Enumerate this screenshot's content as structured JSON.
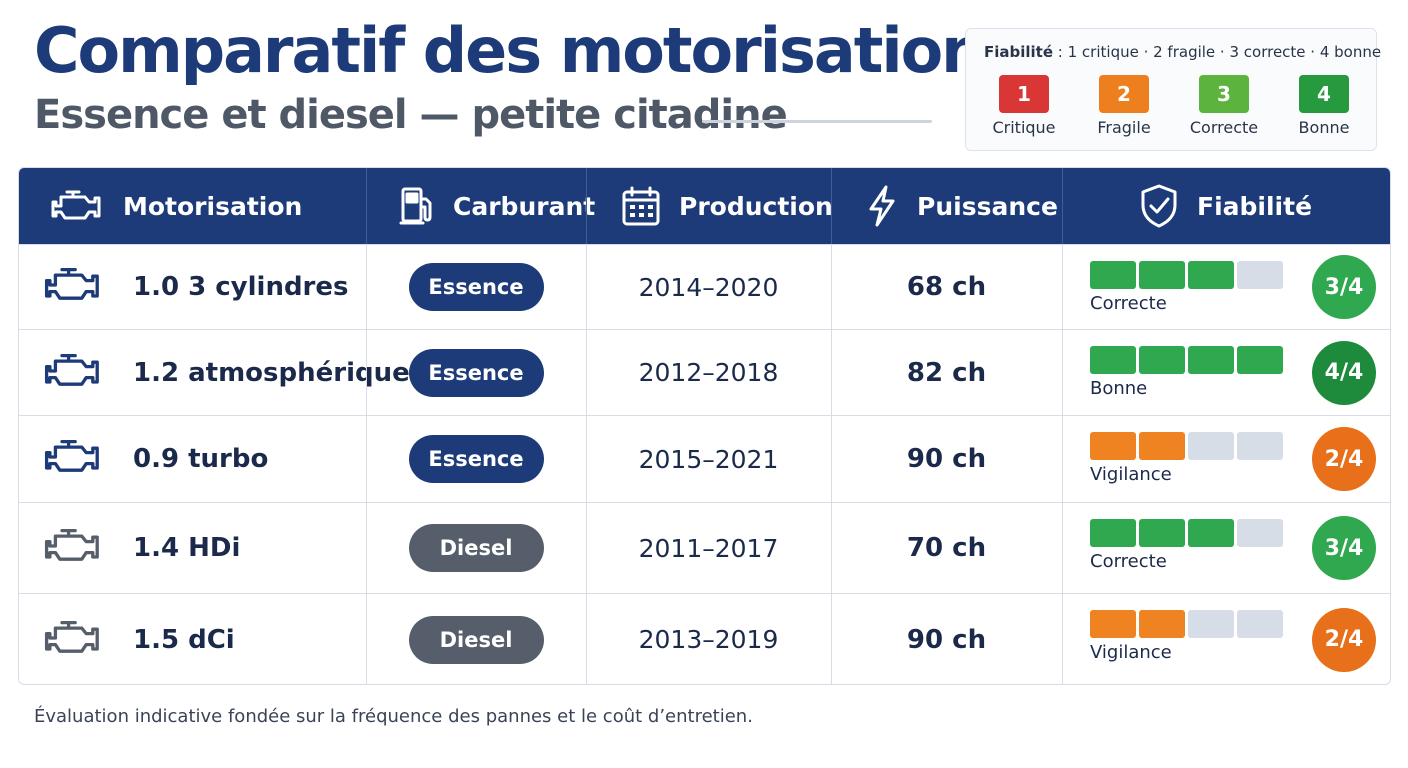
{
  "title": "Comparatif des motorisations",
  "subtitle": "Essence et diesel — petite citadine",
  "legend": {
    "title_bold": "Fiabilité",
    "title_rest": " : 1 critique · 2 fragile · 3 correcte · 4 bonne",
    "items": [
      {
        "value": "1",
        "label": "Critique",
        "color": "#d93636"
      },
      {
        "value": "2",
        "label": "Fragile",
        "color": "#ee7f1e"
      },
      {
        "value": "3",
        "label": "Correcte",
        "color": "#5cb33e"
      },
      {
        "value": "4",
        "label": "Bonne",
        "color": "#279a3f"
      }
    ]
  },
  "table": {
    "headers": {
      "engine": "Motorisation",
      "fuel": "Carburant",
      "production": "Production",
      "power": "Puissance",
      "reliability": "Fiabilité"
    },
    "header_icons": [
      "engine-icon",
      "fuel-pump-icon",
      "calendar-icon",
      "lightning-icon",
      "shield-check-icon"
    ],
    "rows": [
      {
        "engine": "1.0 3 cylindres",
        "fuel": "Essence",
        "production": "2014–2020",
        "power": "68 ch",
        "reliability_label": "Correcte",
        "score": "3/4",
        "level": 3,
        "bar_color": "#2fa84f",
        "score_color": "#2fa84f"
      },
      {
        "engine": "1.2 atmosphérique",
        "fuel": "Essence",
        "production": "2012–2018",
        "power": "82 ch",
        "reliability_label": "Bonne",
        "score": "4/4",
        "level": 4,
        "bar_color": "#2fa84f",
        "score_color": "#1e8a3b"
      },
      {
        "engine": "0.9 turbo",
        "fuel": "Essence",
        "production": "2015–2021",
        "power": "90 ch",
        "reliability_label": "Vigilance",
        "score": "2/4",
        "level": 2,
        "bar_color": "#ef8321",
        "score_color": "#e8701a"
      },
      {
        "engine": "1.4 HDi",
        "fuel": "Diesel",
        "production": "2011–2017",
        "power": "70 ch",
        "reliability_label": "Correcte",
        "score": "3/4",
        "level": 3,
        "bar_color": "#2fa84f",
        "score_color": "#2fa84f"
      },
      {
        "engine": "1.5 dCi",
        "fuel": "Diesel",
        "production": "2013–2019",
        "power": "90 ch",
        "reliability_label": "Vigilance",
        "score": "2/4",
        "level": 2,
        "bar_color": "#ef8321",
        "score_color": "#e8701a"
      }
    ],
    "fuel_colors": {
      "Essence": "#1d3b78",
      "Diesel": "#565e6b"
    },
    "bar_empty_color": "#d6dde6"
  },
  "footnote": "Évaluation indicative fondée sur la fréquence des pannes et le coût d’entretien."
}
